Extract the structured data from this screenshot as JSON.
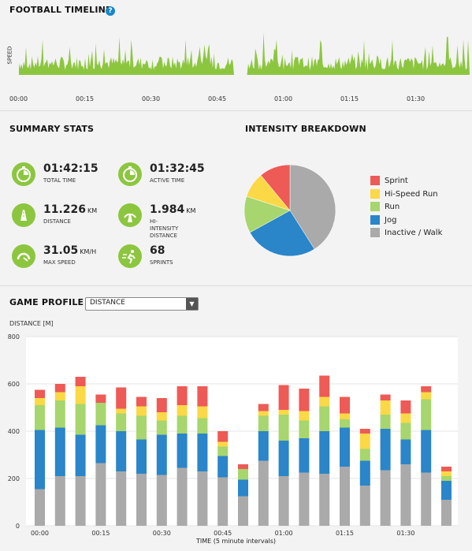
{
  "timeline": {
    "title": "FOOTBALL TIMELINE",
    "help_icon": "?",
    "speed_label": "SPEED",
    "ticks": [
      "00:00",
      "00:15",
      "00:30",
      "00:45",
      "01:00",
      "01:15",
      "01:30"
    ]
  },
  "summary": {
    "title": "SUMMARY STATS",
    "stats": [
      {
        "value": "01:42:15",
        "unit": "",
        "label": "TOTAL TIME",
        "icon": "stopwatch-icon"
      },
      {
        "value": "01:32:45",
        "unit": "",
        "label": "ACTIVE TIME",
        "icon": "stopwatch-icon"
      },
      {
        "value": "11.226",
        "unit": "KM",
        "label": "DISTANCE",
        "icon": "road-icon"
      },
      {
        "value": "1.984",
        "unit": "KM",
        "label": "HI-INTENSITY\nDISTANCE",
        "icon": "speed-road-icon"
      },
      {
        "value": "31.05",
        "unit": "KM/H",
        "label": "MAX SPEED",
        "icon": "speedometer-icon"
      },
      {
        "value": "68",
        "unit": "",
        "label": "SPRINTS",
        "icon": "sprint-icon"
      }
    ]
  },
  "intensity": {
    "title": "INTENSITY BREAKDOWN",
    "legend": [
      {
        "label": "Sprint",
        "color": "#ee5a55"
      },
      {
        "label": "Hi-Speed Run",
        "color": "#fbd846"
      },
      {
        "label": "Run",
        "color": "#a6d66d"
      },
      {
        "label": "Jog",
        "color": "#2a85c9"
      },
      {
        "label": "Inactive / Walk",
        "color": "#aaaaaa"
      }
    ],
    "slices": [
      0.41,
      0.26,
      0.13,
      0.09,
      0.11
    ]
  },
  "profile": {
    "title": "GAME PROFILE",
    "dropdown": "DISTANCE",
    "ylabel": "DISTANCE [M]",
    "xlabel": "TIME (5 minute intervals)"
  },
  "chart_data": {
    "type": "bar",
    "stacked": true,
    "ylim": [
      0,
      800
    ],
    "yticks": [
      0,
      200,
      400,
      600,
      800
    ],
    "xtick_labels": [
      "00:00",
      "00:15",
      "00:30",
      "00:45",
      "01:00",
      "01:15",
      "01:30"
    ],
    "xtick_index": [
      0,
      3,
      6,
      9,
      12,
      15,
      18
    ],
    "xlabel": "TIME (5 minute intervals)",
    "ylabel": "DISTANCE [M]",
    "series": [
      {
        "name": "Inactive / Walk",
        "color": "#aaaaaa",
        "values": [
          155,
          210,
          210,
          265,
          230,
          220,
          215,
          245,
          230,
          205,
          125,
          275,
          210,
          225,
          220,
          250,
          170,
          235,
          260,
          225,
          110
        ]
      },
      {
        "name": "Jog",
        "color": "#2a85c9",
        "values": [
          250,
          205,
          175,
          160,
          170,
          145,
          170,
          145,
          160,
          90,
          70,
          125,
          150,
          145,
          180,
          165,
          105,
          175,
          105,
          180,
          80
        ]
      },
      {
        "name": "Run",
        "color": "#a6d66d",
        "values": [
          105,
          115,
          130,
          95,
          75,
          100,
          60,
          75,
          65,
          40,
          45,
          65,
          110,
          75,
          105,
          35,
          50,
          60,
          70,
          130,
          20
        ]
      },
      {
        "name": "Hi-Speed Run",
        "color": "#fbd846",
        "values": [
          30,
          35,
          75,
          0,
          20,
          40,
          35,
          45,
          50,
          20,
          0,
          20,
          20,
          40,
          40,
          25,
          65,
          60,
          40,
          30,
          20
        ]
      },
      {
        "name": "Sprint",
        "color": "#ee5a55",
        "values": [
          35,
          35,
          40,
          35,
          90,
          40,
          60,
          80,
          85,
          45,
          20,
          30,
          105,
          95,
          90,
          70,
          20,
          25,
          55,
          25,
          20
        ]
      }
    ]
  }
}
